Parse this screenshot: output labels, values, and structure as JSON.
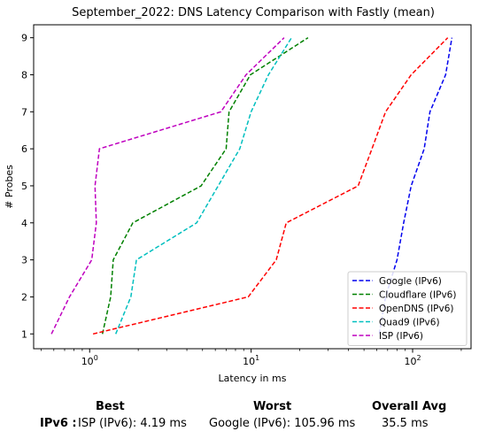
{
  "chart_data": {
    "type": "line",
    "title": "September_2022: DNS Latency Comparison with Fastly (mean)",
    "xlabel": "Latency in ms",
    "ylabel": "# Probes",
    "xscale": "log",
    "xlim": [
      0.45,
      230
    ],
    "ylim": [
      0.6,
      9.35
    ],
    "x_ticks": [
      1,
      10,
      100
    ],
    "x_tick_labels": [
      "10^0",
      "10^1",
      "10^2"
    ],
    "y_ticks": [
      1,
      2,
      3,
      4,
      5,
      6,
      7,
      8,
      9
    ],
    "grid": false,
    "legend_position": "lower-right",
    "series": [
      {
        "name": "Google (IPv6)",
        "color": "#0000ee",
        "points": [
          [
            62,
            1
          ],
          [
            68,
            2
          ],
          [
            80,
            3
          ],
          [
            88,
            4
          ],
          [
            98,
            5
          ],
          [
            118,
            6
          ],
          [
            128,
            7
          ],
          [
            160,
            8
          ],
          [
            175,
            9
          ]
        ]
      },
      {
        "name": "Cloudflare (IPv6)",
        "color": "#008000",
        "points": [
          [
            1.2,
            1
          ],
          [
            1.35,
            2
          ],
          [
            1.4,
            3
          ],
          [
            1.85,
            4
          ],
          [
            4.9,
            5
          ],
          [
            7,
            6
          ],
          [
            7.3,
            7
          ],
          [
            9.9,
            8
          ],
          [
            22.5,
            9
          ]
        ]
      },
      {
        "name": "OpenDNS (IPv6)",
        "color": "#ff0000",
        "points": [
          [
            1.05,
            1
          ],
          [
            9.6,
            2
          ],
          [
            14.3,
            3
          ],
          [
            16.5,
            4
          ],
          [
            46,
            5
          ],
          [
            56,
            6
          ],
          [
            68,
            7
          ],
          [
            98,
            8
          ],
          [
            165,
            9
          ]
        ]
      },
      {
        "name": "Quad9 (IPv6)",
        "color": "#00bfbf",
        "points": [
          [
            1.45,
            1
          ],
          [
            1.8,
            2
          ],
          [
            1.95,
            3
          ],
          [
            4.6,
            4
          ],
          [
            8.5,
            6
          ],
          [
            10,
            7
          ],
          [
            12.8,
            8
          ],
          [
            17.8,
            9
          ]
        ]
      },
      {
        "name": "ISP (IPv6)",
        "color": "#bf00bf",
        "points": [
          [
            0.58,
            1
          ],
          [
            0.75,
            2
          ],
          [
            1.03,
            3
          ],
          [
            1.1,
            4
          ],
          [
            1.08,
            5
          ],
          [
            1.15,
            6
          ],
          [
            6.5,
            7
          ],
          [
            9.3,
            8
          ],
          [
            16,
            9
          ]
        ]
      }
    ]
  },
  "summary": {
    "best_header": "Best",
    "worst_header": "Worst",
    "avg_header": "Overall Avg",
    "row_label": "IPv6 :",
    "best_value": "ISP (IPv6): 4.19 ms",
    "worst_value": "Google (IPv6): 105.96 ms",
    "avg_value": "35.5 ms"
  }
}
